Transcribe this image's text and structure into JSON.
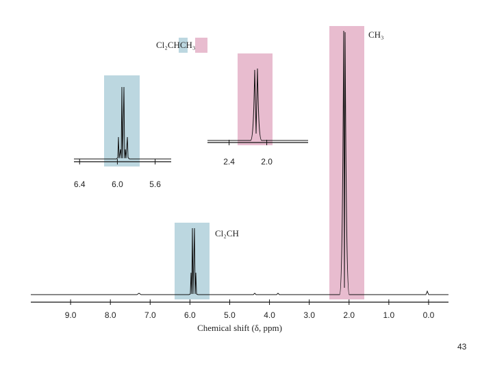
{
  "chart_data": {
    "type": "nmr",
    "compound": "Cl₂CHCH₃",
    "xlabel": "Chemical shift (δ, ppm)",
    "xlim": [
      10.0,
      -0.5
    ],
    "xticks": [
      {
        "value": 9,
        "label": "9.0"
      },
      {
        "value": 8,
        "label": "8.0"
      },
      {
        "value": 7,
        "label": "7.0"
      },
      {
        "value": 6,
        "label": "6.0"
      },
      {
        "value": 5,
        "label": "5.0"
      },
      {
        "value": 4,
        "label": "4.0"
      },
      {
        "value": 3,
        "label": "3.0"
      },
      {
        "value": 2,
        "label": "2.0"
      },
      {
        "value": 1,
        "label": "1.0"
      },
      {
        "value": 0,
        "label": "0.0"
      }
    ],
    "annotations": [
      "CH₃",
      "Cl₂CH"
    ],
    "insets": [
      {
        "xlim": [
          6.46,
          5.43
        ],
        "xticks": [
          6.4,
          {
            "value": 6,
            "label": "6.0"
          },
          5.6
        ]
      },
      {
        "xlim": [
          2.63,
          1.56
        ],
        "xticks": [
          2.4,
          {
            "value": 2,
            "label": "2.0"
          }
        ]
      }
    ]
  },
  "page_number": "43"
}
